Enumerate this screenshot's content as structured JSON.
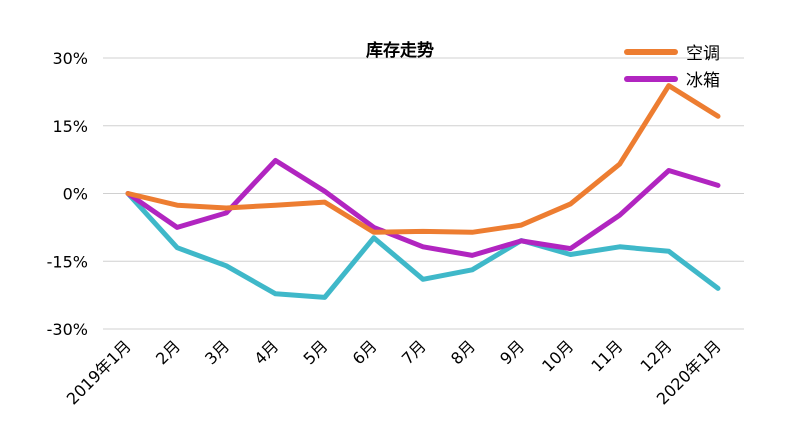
{
  "chart_data": {
    "type": "line",
    "title": "库存走势",
    "categories": [
      "2019年1月",
      "2月",
      "3月",
      "4月",
      "5月",
      "6月",
      "7月",
      "8月",
      "9月",
      "10月",
      "11月",
      "12月",
      "2020年1月"
    ],
    "yticks": [
      "30%",
      "15%",
      "0%",
      "-15%",
      "-30%"
    ],
    "ylim": [
      -30,
      30
    ],
    "ytick_values": [
      30,
      15,
      0,
      -15,
      -30
    ],
    "grid": true,
    "legend_position": "top-right",
    "series": [
      {
        "name": "空调",
        "color": "#ED7D31",
        "values": [
          0,
          -2.6,
          -3.2,
          -2.6,
          -1.9,
          -8.6,
          -8.4,
          -8.6,
          -7.0,
          -2.3,
          6.5,
          23.9,
          17.1
        ]
      },
      {
        "name": "冰箱",
        "color": "#B125C0",
        "values": [
          0,
          -7.5,
          -4.3,
          7.3,
          0.5,
          -7.5,
          -11.8,
          -13.7,
          -10.5,
          -12.2,
          -4.8,
          5.1,
          1.8
        ]
      },
      {
        "name": "",
        "color": "#3FB8C9",
        "values": [
          0,
          -12.0,
          -16.0,
          -22.2,
          -23.0,
          -9.8,
          -19.0,
          -16.9,
          -10.4,
          -13.5,
          -11.8,
          -12.8,
          -21.0
        ]
      }
    ]
  }
}
